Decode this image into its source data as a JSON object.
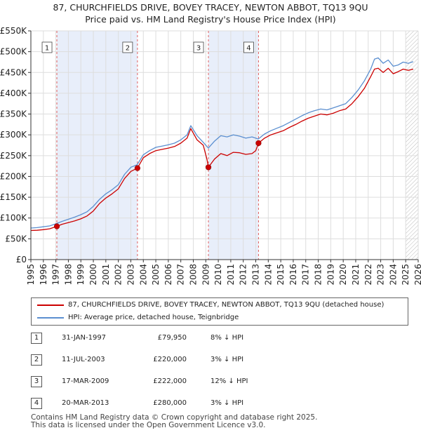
{
  "title_line1": "87, CHURCHFIELDS DRIVE, BOVEY TRACEY, NEWTON ABBOT, TQ13 9QU",
  "title_line2": "Price paid vs. HM Land Registry's House Price Index (HPI)",
  "chart_data": {
    "type": "line",
    "title": "87, CHURCHFIELDS DRIVE, BOVEY TRACEY, NEWTON ABBOT, TQ13 9QU — Price paid vs. HM Land Registry's House Price Index (HPI)",
    "xlabel": "",
    "ylabel": "",
    "xlim": [
      1995,
      2026
    ],
    "ylim": [
      0,
      550000
    ],
    "y_ticks": [
      0,
      50000,
      100000,
      150000,
      200000,
      250000,
      300000,
      350000,
      400000,
      450000,
      500000,
      550000
    ],
    "y_tick_labels": [
      "£0",
      "£50K",
      "£100K",
      "£150K",
      "£200K",
      "£250K",
      "£300K",
      "£350K",
      "£400K",
      "£450K",
      "£500K",
      "£550K"
    ],
    "x_ticks": [
      1995,
      1996,
      1997,
      1998,
      1999,
      2000,
      2001,
      2002,
      2003,
      2004,
      2005,
      2006,
      2007,
      2008,
      2009,
      2010,
      2011,
      2012,
      2013,
      2014,
      2015,
      2016,
      2017,
      2018,
      2019,
      2020,
      2021,
      2022,
      2023,
      2024,
      2025,
      2026
    ],
    "grid": true,
    "shaded_periods": [
      [
        1997.08,
        2003.53
      ],
      [
        2009.21,
        2013.22
      ]
    ],
    "future_hatch_from": 2025.0,
    "series": [
      {
        "name": "87, CHURCHFIELDS DRIVE, BOVEY TRACEY, NEWTON ABBOT, TQ13 9QU (detached house)",
        "color": "#cc0000",
        "x": [
          1995.0,
          1995.5,
          1996.0,
          1996.5,
          1997.08,
          1997.5,
          1998.0,
          1998.5,
          1999.0,
          1999.5,
          2000.0,
          2000.5,
          2001.0,
          2001.5,
          2002.0,
          2002.5,
          2003.0,
          2003.53,
          2004.0,
          2004.5,
          2005.0,
          2005.5,
          2006.0,
          2006.5,
          2007.0,
          2007.5,
          2007.8,
          2008.3,
          2008.8,
          2009.1,
          2009.21,
          2009.7,
          2010.2,
          2010.7,
          2011.2,
          2011.7,
          2012.2,
          2012.7,
          2013.0,
          2013.22,
          2013.7,
          2014.2,
          2014.7,
          2015.2,
          2015.7,
          2016.2,
          2016.7,
          2017.2,
          2017.7,
          2018.2,
          2018.7,
          2019.2,
          2019.7,
          2020.2,
          2020.7,
          2021.2,
          2021.7,
          2022.2,
          2022.5,
          2022.8,
          2023.2,
          2023.6,
          2024.0,
          2024.4,
          2024.8,
          2025.2,
          2025.6
        ],
        "values": [
          70000,
          70500,
          72000,
          74000,
          79950,
          85000,
          89000,
          93000,
          98000,
          105000,
          117000,
          135000,
          148000,
          158000,
          170000,
          195000,
          212000,
          220000,
          245000,
          255000,
          262000,
          265000,
          268000,
          272000,
          280000,
          292000,
          315000,
          288000,
          275000,
          240000,
          222000,
          242000,
          255000,
          250000,
          258000,
          257000,
          253000,
          255000,
          262000,
          280000,
          292000,
          300000,
          305000,
          310000,
          318000,
          325000,
          333000,
          340000,
          345000,
          350000,
          348000,
          352000,
          358000,
          362000,
          375000,
          392000,
          412000,
          440000,
          458000,
          460000,
          450000,
          460000,
          447000,
          452000,
          458000,
          455000,
          458000
        ]
      },
      {
        "name": "HPI: Average price, detached house, Teignbridge",
        "color": "#5b8fd0",
        "x": [
          1995.0,
          1995.5,
          1996.0,
          1996.5,
          1997.0,
          1997.5,
          1998.0,
          1998.5,
          1999.0,
          1999.5,
          2000.0,
          2000.5,
          2001.0,
          2001.5,
          2002.0,
          2002.5,
          2003.0,
          2003.5,
          2004.0,
          2004.5,
          2005.0,
          2005.5,
          2006.0,
          2006.5,
          2007.0,
          2007.5,
          2007.8,
          2008.3,
          2008.8,
          2009.2,
          2009.7,
          2010.2,
          2010.7,
          2011.2,
          2011.7,
          2012.2,
          2012.7,
          2013.2,
          2013.7,
          2014.2,
          2014.7,
          2015.2,
          2015.7,
          2016.2,
          2016.7,
          2017.2,
          2017.7,
          2018.2,
          2018.7,
          2019.2,
          2019.7,
          2020.2,
          2020.7,
          2021.2,
          2021.7,
          2022.2,
          2022.5,
          2022.8,
          2023.2,
          2023.6,
          2024.0,
          2024.4,
          2024.8,
          2025.2,
          2025.6
        ],
        "values": [
          76000,
          77000,
          79000,
          81000,
          86000,
          92000,
          97000,
          102000,
          108000,
          115000,
          128000,
          145000,
          158000,
          168000,
          180000,
          205000,
          222000,
          228000,
          252000,
          262000,
          270000,
          273000,
          276000,
          280000,
          288000,
          300000,
          322000,
          298000,
          282000,
          268000,
          285000,
          298000,
          295000,
          300000,
          297000,
          292000,
          295000,
          290000,
          302000,
          310000,
          316000,
          322000,
          330000,
          338000,
          346000,
          353000,
          358000,
          362000,
          360000,
          365000,
          370000,
          375000,
          390000,
          408000,
          430000,
          458000,
          482000,
          485000,
          472000,
          480000,
          465000,
          468000,
          475000,
          472000,
          476000
        ]
      }
    ],
    "sale_markers": [
      {
        "label": "1",
        "x": 1997.08,
        "value": 79950
      },
      {
        "label": "2",
        "x": 2003.53,
        "value": 220000
      },
      {
        "label": "3",
        "x": 2009.21,
        "value": 222000
      },
      {
        "label": "4",
        "x": 2013.22,
        "value": 280000
      }
    ]
  },
  "legend": {
    "property_label": "87, CHURCHFIELDS DRIVE, BOVEY TRACEY, NEWTON ABBOT, TQ13 9QU (detached house)",
    "hpi_label": "HPI: Average price, detached house, Teignbridge"
  },
  "sales": [
    {
      "num": "1",
      "date": "31-JAN-1997",
      "price": "£79,950",
      "hpi": "8% ↓ HPI"
    },
    {
      "num": "2",
      "date": "11-JUL-2003",
      "price": "£220,000",
      "hpi": "3% ↓ HPI"
    },
    {
      "num": "3",
      "date": "17-MAR-2009",
      "price": "£222,000",
      "hpi": "12% ↓ HPI"
    },
    {
      "num": "4",
      "date": "20-MAR-2013",
      "price": "£280,000",
      "hpi": "3% ↓ HPI"
    }
  ],
  "footer": {
    "line1": "Contains HM Land Registry data © Crown copyright and database right 2025.",
    "line2": "This data is licensed under the Open Government Licence v3.0."
  }
}
